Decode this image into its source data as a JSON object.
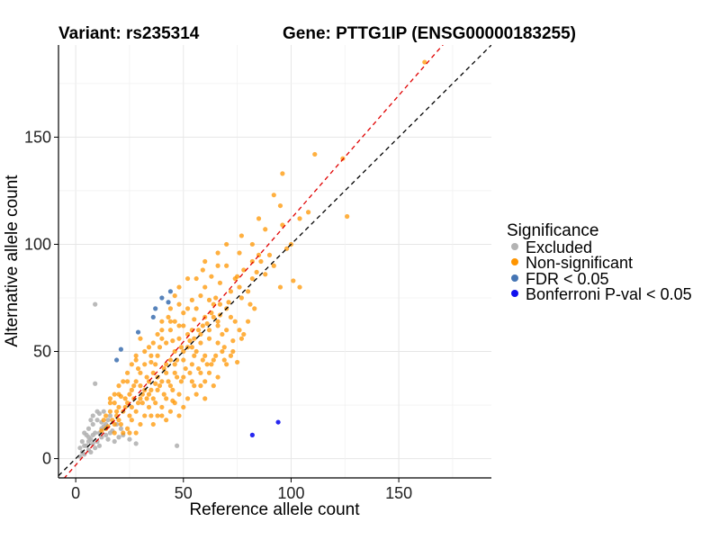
{
  "header": {
    "variant_title": "Variant: rs235314",
    "gene_title": "Gene: PTTG1IP (ENSG00000183255)"
  },
  "legend": {
    "title": "Significance",
    "items": [
      {
        "label": "Excluded",
        "color": "#b3b3b3"
      },
      {
        "label": "Non-significant",
        "color": "#ff9500"
      },
      {
        "label": "FDR < 0.05",
        "color": "#4575b4"
      },
      {
        "label": "Bonferroni P-val < 0.05",
        "color": "#1010ee"
      }
    ]
  },
  "chart_data": {
    "type": "scatter",
    "title": "Variant: rs235314    Gene: PTTG1IP (ENSG00000183255)",
    "xlabel": "Reference allele count",
    "ylabel": "Alternative allele count",
    "xlim": [
      -8,
      193
    ],
    "ylim": [
      -9,
      193
    ],
    "xticks": [
      0,
      50,
      100,
      150
    ],
    "yticks": [
      0,
      50,
      100,
      150
    ],
    "xtick_labels": [
      "0",
      "50",
      "100",
      "150"
    ],
    "ytick_labels": [
      "0",
      "50",
      "100",
      "150"
    ],
    "grid": true,
    "reference_lines": [
      {
        "name": "identity (y = x)",
        "slope": 1.0,
        "intercept": 0,
        "color": "#000000",
        "style": "dashed"
      },
      {
        "name": "fitted",
        "slope": 1.15,
        "intercept": -3,
        "color": "#e00000",
        "style": "dashed"
      }
    ],
    "series": [
      {
        "name": "Excluded",
        "color": "#b3b3b3",
        "points": [
          [
            9,
            72
          ],
          [
            9,
            35
          ],
          [
            47,
            6
          ],
          [
            3,
            3
          ],
          [
            5,
            6
          ],
          [
            6,
            4
          ],
          [
            7,
            9
          ],
          [
            8,
            7
          ],
          [
            9,
            12
          ],
          [
            4,
            2
          ],
          [
            6,
            10
          ],
          [
            10,
            8
          ],
          [
            11,
            12
          ],
          [
            8,
            16
          ],
          [
            12,
            10
          ],
          [
            2,
            5
          ],
          [
            5,
            11
          ],
          [
            7,
            3
          ],
          [
            13,
            15
          ],
          [
            10,
            18
          ],
          [
            14,
            11
          ],
          [
            6,
            14
          ],
          [
            9,
            5
          ],
          [
            11,
            6
          ],
          [
            15,
            9
          ],
          [
            12,
            17
          ],
          [
            8,
            20
          ],
          [
            13,
            22
          ],
          [
            16,
            12
          ],
          [
            18,
            8
          ],
          [
            20,
            10
          ],
          [
            25,
            9
          ],
          [
            28,
            7
          ],
          [
            21,
            14
          ],
          [
            3,
            8
          ],
          [
            4,
            12
          ],
          [
            7,
            18
          ],
          [
            10,
            22
          ],
          [
            15,
            18
          ],
          [
            17,
            13
          ],
          [
            19,
            16
          ],
          [
            22,
            11
          ],
          [
            2,
            1
          ],
          [
            4,
            6
          ],
          [
            6,
            8
          ],
          [
            8,
            11
          ],
          [
            12,
            14
          ],
          [
            14,
            16
          ],
          [
            16,
            20
          ],
          [
            11,
            21
          ]
        ]
      },
      {
        "name": "Non-significant",
        "color": "#ff9500",
        "points": [
          [
            162,
            185
          ],
          [
            124,
            140
          ],
          [
            111,
            142
          ],
          [
            96,
            133
          ],
          [
            126,
            113
          ],
          [
            92,
            123
          ],
          [
            95,
            118
          ],
          [
            104,
            112
          ],
          [
            108,
            115
          ],
          [
            85,
            112
          ],
          [
            77,
            104
          ],
          [
            88,
            107
          ],
          [
            82,
            100
          ],
          [
            100,
            100
          ],
          [
            98,
            98
          ],
          [
            96,
            109
          ],
          [
            90,
            95
          ],
          [
            101,
            83
          ],
          [
            95,
            80
          ],
          [
            104,
            80
          ],
          [
            82,
            84
          ],
          [
            84,
            87
          ],
          [
            86,
            92
          ],
          [
            70,
            90
          ],
          [
            76,
            96
          ],
          [
            74,
            84
          ],
          [
            78,
            88
          ],
          [
            80,
            78
          ],
          [
            76,
            80
          ],
          [
            72,
            78
          ],
          [
            66,
            90
          ],
          [
            63,
            85
          ],
          [
            67,
            82
          ],
          [
            60,
            80
          ],
          [
            58,
            76
          ],
          [
            62,
            74
          ],
          [
            64,
            72
          ],
          [
            70,
            70
          ],
          [
            72,
            66
          ],
          [
            74,
            64
          ],
          [
            76,
            60
          ],
          [
            70,
            60
          ],
          [
            68,
            58
          ],
          [
            66,
            62
          ],
          [
            64,
            66
          ],
          [
            60,
            66
          ],
          [
            56,
            70
          ],
          [
            54,
            74
          ],
          [
            52,
            70
          ],
          [
            50,
            68
          ],
          [
            48,
            72
          ],
          [
            46,
            76
          ],
          [
            44,
            70
          ],
          [
            50,
            62
          ],
          [
            54,
            60
          ],
          [
            58,
            58
          ],
          [
            62,
            56
          ],
          [
            66,
            54
          ],
          [
            68,
            50
          ],
          [
            72,
            48
          ],
          [
            75,
            45
          ],
          [
            70,
            44
          ],
          [
            64,
            46
          ],
          [
            60,
            48
          ],
          [
            56,
            50
          ],
          [
            52,
            52
          ],
          [
            48,
            56
          ],
          [
            44,
            60
          ],
          [
            40,
            64
          ],
          [
            38,
            58
          ],
          [
            42,
            54
          ],
          [
            46,
            50
          ],
          [
            50,
            46
          ],
          [
            54,
            44
          ],
          [
            58,
            40
          ],
          [
            62,
            40
          ],
          [
            66,
            38
          ],
          [
            64,
            34
          ],
          [
            58,
            34
          ],
          [
            54,
            36
          ],
          [
            50,
            38
          ],
          [
            46,
            40
          ],
          [
            42,
            44
          ],
          [
            38,
            48
          ],
          [
            34,
            52
          ],
          [
            30,
            56
          ],
          [
            28,
            48
          ],
          [
            32,
            44
          ],
          [
            36,
            40
          ],
          [
            40,
            36
          ],
          [
            44,
            34
          ],
          [
            48,
            30
          ],
          [
            52,
            28
          ],
          [
            56,
            30
          ],
          [
            60,
            28
          ],
          [
            50,
            24
          ],
          [
            46,
            26
          ],
          [
            42,
            28
          ],
          [
            38,
            32
          ],
          [
            34,
            36
          ],
          [
            30,
            40
          ],
          [
            26,
            44
          ],
          [
            24,
            40
          ],
          [
            28,
            36
          ],
          [
            32,
            32
          ],
          [
            36,
            28
          ],
          [
            40,
            24
          ],
          [
            44,
            22
          ],
          [
            48,
            20
          ],
          [
            42,
            18
          ],
          [
            38,
            20
          ],
          [
            34,
            24
          ],
          [
            30,
            28
          ],
          [
            26,
            32
          ],
          [
            22,
            36
          ],
          [
            20,
            30
          ],
          [
            24,
            26
          ],
          [
            28,
            22
          ],
          [
            32,
            20
          ],
          [
            36,
            16
          ],
          [
            30,
            16
          ],
          [
            26,
            18
          ],
          [
            22,
            22
          ],
          [
            18,
            26
          ],
          [
            16,
            22
          ],
          [
            20,
            18
          ],
          [
            24,
            14
          ],
          [
            28,
            12
          ],
          [
            22,
            12
          ],
          [
            18,
            16
          ],
          [
            14,
            20
          ],
          [
            14,
            14
          ],
          [
            18,
            12
          ],
          [
            20,
            24
          ],
          [
            25,
            30
          ],
          [
            35,
            45
          ],
          [
            45,
            55
          ],
          [
            55,
            65
          ],
          [
            65,
            75
          ],
          [
            75,
            85
          ],
          [
            85,
            95
          ],
          [
            56,
            84
          ],
          [
            59,
            88
          ],
          [
            48,
            80
          ],
          [
            43,
            66
          ],
          [
            40,
            56
          ],
          [
            37,
            44
          ],
          [
            33,
            38
          ],
          [
            27,
            34
          ],
          [
            23,
            28
          ],
          [
            19,
            22
          ],
          [
            17,
            18
          ],
          [
            15,
            15
          ],
          [
            12,
            13
          ],
          [
            13,
            18
          ],
          [
            16,
            26
          ],
          [
            21,
            29
          ],
          [
            26,
            24
          ],
          [
            31,
            30
          ],
          [
            37,
            35
          ],
          [
            41,
            42
          ],
          [
            47,
            46
          ],
          [
            53,
            55
          ],
          [
            57,
            60
          ],
          [
            61,
            63
          ],
          [
            67,
            67
          ],
          [
            71,
            73
          ],
          [
            77,
            75
          ],
          [
            81,
            72
          ],
          [
            83,
            70
          ],
          [
            78,
            58
          ],
          [
            73,
            55
          ],
          [
            69,
            52
          ],
          [
            82,
            92
          ],
          [
            88,
            86
          ],
          [
            92,
            90
          ],
          [
            70,
            100
          ],
          [
            66,
            96
          ],
          [
            60,
            92
          ],
          [
            52,
            84
          ],
          [
            46,
            64
          ],
          [
            39,
            52
          ],
          [
            35,
            48
          ],
          [
            29,
            42
          ],
          [
            44,
            46
          ],
          [
            49,
            52
          ],
          [
            55,
            56
          ],
          [
            59,
            62
          ],
          [
            63,
            68
          ],
          [
            67,
            72
          ],
          [
            30,
            34
          ],
          [
            34,
            30
          ],
          [
            38,
            38
          ],
          [
            42,
            40
          ],
          [
            46,
            44
          ],
          [
            50,
            50
          ],
          [
            54,
            52
          ],
          [
            58,
            54
          ],
          [
            62,
            60
          ],
          [
            66,
            64
          ],
          [
            25,
            20
          ],
          [
            29,
            26
          ],
          [
            33,
            28
          ],
          [
            37,
            26
          ],
          [
            41,
            30
          ],
          [
            45,
            32
          ],
          [
            49,
            36
          ],
          [
            53,
            40
          ],
          [
            57,
            42
          ],
          [
            61,
            44
          ],
          [
            65,
            48
          ],
          [
            69,
            46
          ],
          [
            73,
            50
          ],
          [
            77,
            56
          ],
          [
            80,
            64
          ],
          [
            63,
            44
          ],
          [
            59,
            46
          ],
          [
            55,
            48
          ],
          [
            51,
            42
          ],
          [
            47,
            38
          ],
          [
            43,
            36
          ],
          [
            39,
            34
          ],
          [
            35,
            32
          ],
          [
            31,
            26
          ],
          [
            27,
            28
          ],
          [
            23,
            24
          ],
          [
            19,
            20
          ],
          [
            21,
            16
          ],
          [
            25,
            12
          ],
          [
            35,
            20
          ],
          [
            40,
            20
          ],
          [
            45,
            27
          ],
          [
            55,
            34
          ],
          [
            60,
            36
          ],
          [
            52,
            58
          ],
          [
            48,
            62
          ],
          [
            44,
            64
          ],
          [
            40,
            60
          ],
          [
            36,
            54
          ],
          [
            32,
            50
          ],
          [
            28,
            46
          ],
          [
            24,
            36
          ],
          [
            20,
            34
          ],
          [
            18,
            30
          ],
          [
            16,
            28
          ]
        ]
      },
      {
        "name": "FDR < 0.05",
        "color": "#4575b4",
        "points": [
          [
            44,
            78
          ],
          [
            40,
            75
          ],
          [
            43,
            73
          ],
          [
            37,
            70
          ],
          [
            36,
            66
          ],
          [
            21,
            51
          ],
          [
            19,
            46
          ],
          [
            29,
            59
          ]
        ]
      },
      {
        "name": "Bonferroni P-val < 0.05",
        "color": "#1010ee",
        "points": [
          [
            82,
            11
          ],
          [
            94,
            17
          ]
        ]
      }
    ]
  }
}
